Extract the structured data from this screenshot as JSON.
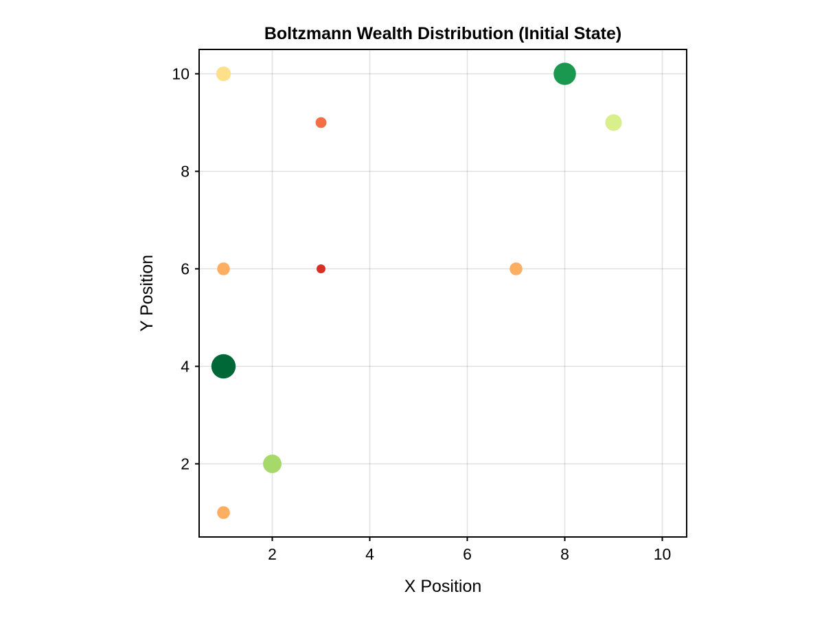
{
  "chart_data": {
    "type": "scatter",
    "title": "Boltzmann Wealth Distribution (Initial State)",
    "xlabel": "X Position",
    "ylabel": "Y Position",
    "xlim": [
      0.5,
      10.5
    ],
    "ylim": [
      0.5,
      10.5
    ],
    "xticks": [
      2,
      4,
      6,
      8,
      10
    ],
    "yticks": [
      2,
      4,
      6,
      8,
      10
    ],
    "grid": true,
    "legend": "none",
    "size_encoding": "wealth",
    "color_encoding": "wealth (red-yellow-green scale)",
    "points": [
      {
        "x": 1,
        "y": 10,
        "wealth": 3,
        "color": "#fee08b"
      },
      {
        "x": 3,
        "y": 9,
        "wealth": 1,
        "color": "#f46d43"
      },
      {
        "x": 8,
        "y": 10,
        "wealth": 7,
        "color": "#1a9850"
      },
      {
        "x": 9,
        "y": 9,
        "wealth": 4,
        "color": "#d9ef8b"
      },
      {
        "x": 1,
        "y": 6,
        "wealth": 2,
        "color": "#fdae61"
      },
      {
        "x": 3,
        "y": 6,
        "wealth": 0,
        "color": "#d73027"
      },
      {
        "x": 7,
        "y": 6,
        "wealth": 2,
        "color": "#fdae61"
      },
      {
        "x": 1,
        "y": 4,
        "wealth": 8,
        "color": "#006837"
      },
      {
        "x": 2,
        "y": 2,
        "wealth": 5,
        "color": "#a6d96a"
      },
      {
        "x": 1,
        "y": 1,
        "wealth": 2,
        "color": "#fdae61"
      }
    ]
  }
}
